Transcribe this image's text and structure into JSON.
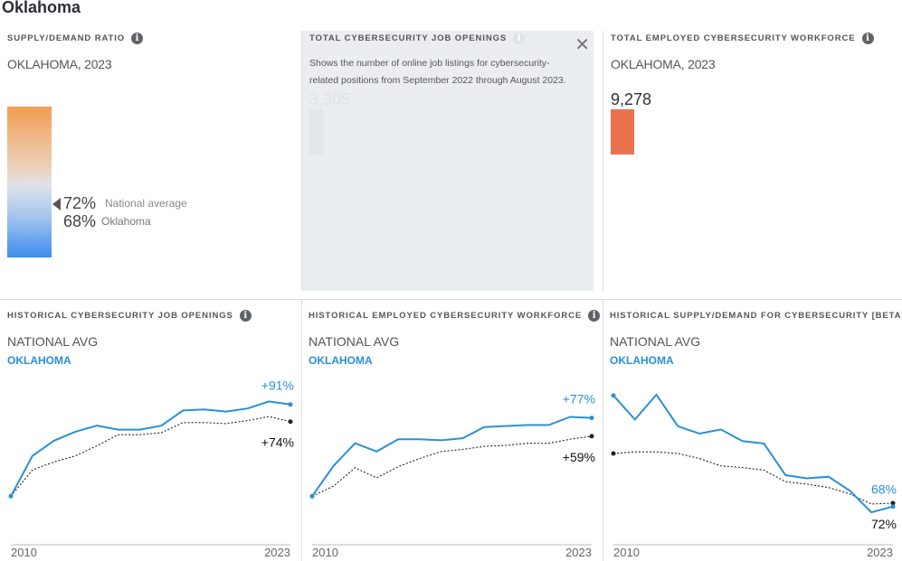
{
  "page": {
    "title": "Oklahoma"
  },
  "supply_demand": {
    "title": "SUPPLY/DEMAND RATIO",
    "subtitle": "OKLAHOMA, 2023",
    "national_value": "72%",
    "national_label": "National average",
    "state_value": "68%",
    "state_label": "Oklahoma",
    "gradient_colors": [
      "#f29d52",
      "#dde3ea",
      "#3b8ced"
    ]
  },
  "job_openings": {
    "title": "TOTAL CYBERSECURITY JOB OPENINGS",
    "tooltip": "Shows the number of online job listings for cybersecurity-related positions from September 2022 through August 2023.",
    "close_label": "✕",
    "value": "3,305"
  },
  "workforce": {
    "title": "TOTAL EMPLOYED CYBERSECURITY WORKFORCE",
    "subtitle": "OKLAHOMA, 2023",
    "value": "9,278",
    "bar_color": "#e8734d"
  },
  "legend": {
    "national": "NATIONAL AVG",
    "state": "OKLAHOMA",
    "state_color": "#2b8fd6"
  },
  "chart_data": [
    {
      "type": "line",
      "title": "HISTORICAL CYBERSECURITY JOB OPENINGS",
      "x": [
        2010,
        2011,
        2012,
        2013,
        2014,
        2015,
        2016,
        2017,
        2018,
        2019,
        2020,
        2021,
        2022,
        2023
      ],
      "x_tick_labels": [
        "2010",
        "2023"
      ],
      "ylim": [
        0,
        100
      ],
      "series": [
        {
          "name": "OKLAHOMA",
          "style": "solid",
          "color": "#2b8fd6",
          "values": [
            0,
            40,
            55,
            64,
            70,
            66,
            66,
            70,
            85,
            86,
            84,
            87,
            94,
            91
          ],
          "end_label": "+91%"
        },
        {
          "name": "NATIONAL AVG",
          "style": "dotted",
          "color": "#222222",
          "values": [
            0,
            26,
            34,
            40,
            50,
            61,
            61,
            63,
            73,
            73,
            72,
            75,
            79,
            74
          ],
          "end_label": "+74%"
        }
      ]
    },
    {
      "type": "line",
      "title": "HISTORICAL EMPLOYED CYBERSECURITY WORKFORCE",
      "x": [
        2010,
        2011,
        2012,
        2013,
        2014,
        2015,
        2016,
        2017,
        2018,
        2019,
        2020,
        2021,
        2022,
        2023
      ],
      "x_tick_labels": [
        "2010",
        "2023"
      ],
      "ylim": [
        0,
        100
      ],
      "series": [
        {
          "name": "OKLAHOMA",
          "style": "solid",
          "color": "#2b8fd6",
          "values": [
            0,
            30,
            52,
            44,
            56,
            56,
            55,
            57,
            68,
            69,
            70,
            70,
            78,
            77
          ],
          "end_label": "+77%"
        },
        {
          "name": "NATIONAL AVG",
          "style": "dotted",
          "color": "#222222",
          "values": [
            0,
            10,
            28,
            18,
            29,
            37,
            44,
            46,
            49,
            50,
            52,
            52,
            56,
            59
          ],
          "end_label": "+59%"
        }
      ]
    },
    {
      "type": "line",
      "title": "HISTORICAL SUPPLY/DEMAND FOR CYBERSECURITY [BETA]",
      "x": [
        2010,
        2011,
        2012,
        2013,
        2014,
        2015,
        2016,
        2017,
        2018,
        2019,
        2020,
        2021,
        2022,
        2023
      ],
      "x_tick_labels": [
        "2010",
        "2023"
      ],
      "ylim": [
        40,
        215
      ],
      "series": [
        {
          "name": "OKLAHOMA",
          "style": "solid",
          "color": "#2b8fd6",
          "values": [
            202,
            173,
            203,
            165,
            156,
            161,
            147,
            144,
            106,
            102,
            104,
            87,
            61,
            68
          ],
          "end_label": "68%"
        },
        {
          "name": "NATIONAL AVG",
          "style": "dotted",
          "color": "#222222",
          "values": [
            132,
            134,
            134,
            132,
            126,
            117,
            115,
            112,
            98,
            95,
            91,
            83,
            71,
            72
          ],
          "end_label": "72%"
        }
      ]
    }
  ]
}
